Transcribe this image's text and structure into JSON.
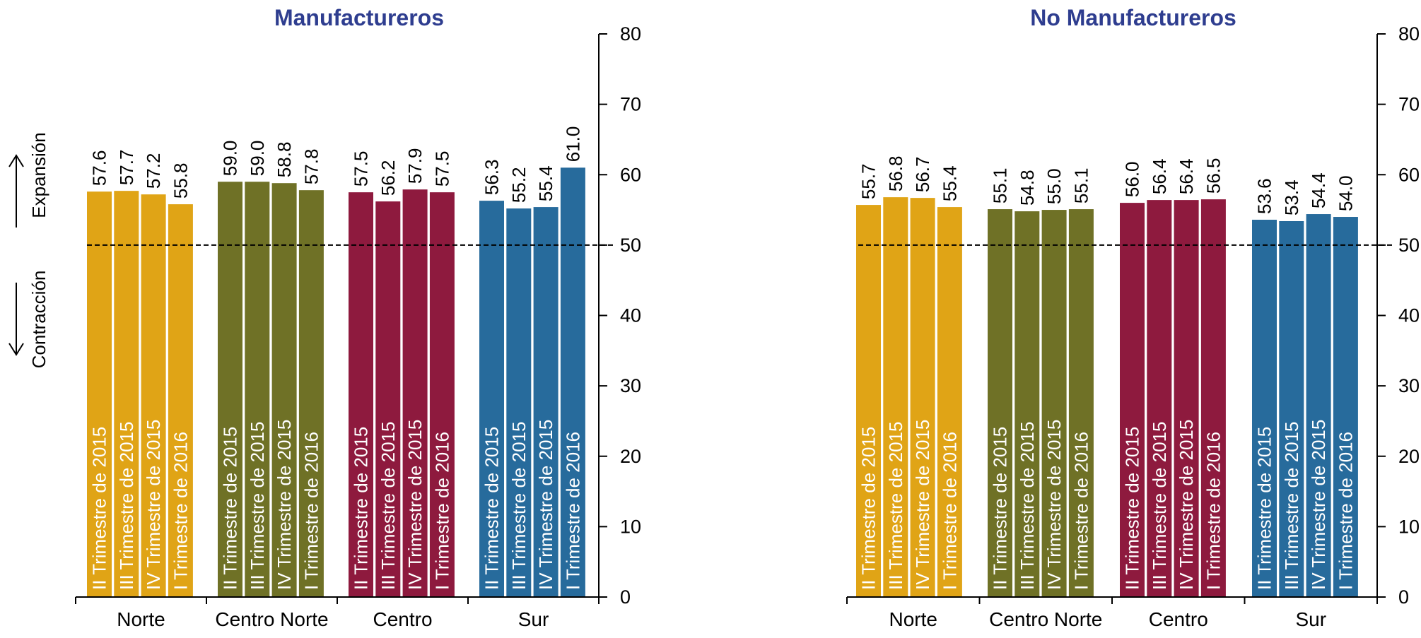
{
  "chart_data": [
    {
      "type": "bar",
      "title": "Manufactureros",
      "groups": [
        "Norte",
        "Centro Norte",
        "Centro",
        "Sur"
      ],
      "bar_labels": [
        [
          "II Trimestre de 2015",
          "III Trimestre de 2015",
          "IV Trimestre de 2015",
          "I Trimestre de 2016"
        ],
        [
          "II Trimestre de 2015",
          "III Trimestre de 2015",
          "IV Trimestre de 2015",
          "I Trimestre de 2016"
        ],
        [
          "II Trimestre de 2015",
          "III Trimestre de 2015",
          "IV Trimestre de 2015",
          "I Trimestre de 2016"
        ],
        [
          "II Trimestre de 2015",
          "III Trimestre de 2015",
          "IV Trimestre de 2015",
          "I Trimestre de 2016"
        ]
      ],
      "values": [
        [
          57.6,
          57.7,
          57.2,
          55.8
        ],
        [
          59.0,
          59.0,
          58.8,
          57.8
        ],
        [
          57.5,
          56.2,
          57.9,
          57.5
        ],
        [
          56.3,
          55.2,
          55.4,
          61.0
        ]
      ],
      "value_labels": [
        [
          "57.6",
          "57.7",
          "57.2",
          "55.8"
        ],
        [
          "59.0",
          "59.0",
          "58.8",
          "57.8"
        ],
        [
          "57.5",
          "56.2",
          "57.9",
          "57.5"
        ],
        [
          "56.3",
          "55.2",
          "55.4",
          "61.0"
        ]
      ],
      "group_colors": [
        "#E0A416",
        "#6F7126",
        "#8E1A3E",
        "#276B9C"
      ],
      "ylim": [
        0,
        80
      ],
      "yticks": [
        "0",
        "10",
        "20",
        "30",
        "40",
        "50",
        "60",
        "70",
        "80"
      ],
      "reference_line": 50,
      "side_labels": {
        "up": "Expansión",
        "down": "Contracción"
      }
    },
    {
      "type": "bar",
      "title": "No Manufactureros",
      "groups": [
        "Norte",
        "Centro Norte",
        "Centro",
        "Sur"
      ],
      "bar_labels": [
        [
          "II Trimestre de 2015",
          "III Trimestre de 2015",
          "IV Trimestre de 2015",
          "I Trimestre de 2016"
        ],
        [
          "II Trimestre de 2015",
          "III Trimestre de 2015",
          "IV Trimestre de 2015",
          "I Trimestre de 2016"
        ],
        [
          "II Trimestre de 2015",
          "III Trimestre de 2015",
          "IV Trimestre de 2015",
          "I Trimestre de 2016"
        ],
        [
          "II Trimestre de 2015",
          "III Trimestre de 2015",
          "IV Trimestre de 2015",
          "I Trimestre de 2016"
        ]
      ],
      "values": [
        [
          55.7,
          56.8,
          56.7,
          55.4
        ],
        [
          55.1,
          54.8,
          55.0,
          55.1
        ],
        [
          56.0,
          56.4,
          56.4,
          56.5
        ],
        [
          53.6,
          53.4,
          54.4,
          54.0
        ]
      ],
      "value_labels": [
        [
          "55.7",
          "56.8",
          "56.7",
          "55.4"
        ],
        [
          "55.1",
          "54.8",
          "55.0",
          "55.1"
        ],
        [
          "56.0",
          "56.4",
          "56.4",
          "56.5"
        ],
        [
          "53.6",
          "53.4",
          "54.4",
          "54.0"
        ]
      ],
      "group_colors": [
        "#E0A416",
        "#6F7126",
        "#8E1A3E",
        "#276B9C"
      ],
      "ylim": [
        0,
        80
      ],
      "yticks": [
        "0",
        "10",
        "20",
        "30",
        "40",
        "50",
        "60",
        "70",
        "80"
      ],
      "reference_line": 50
    }
  ]
}
